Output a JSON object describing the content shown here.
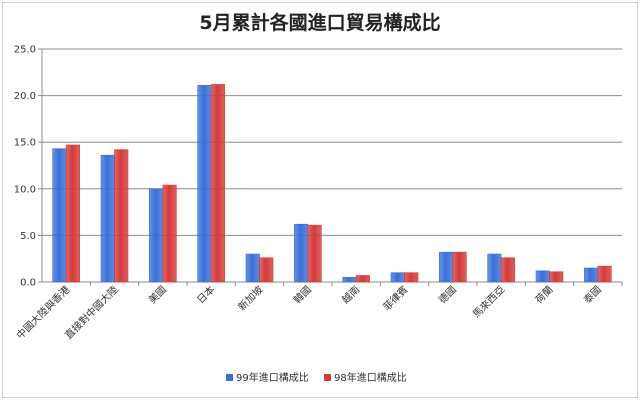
{
  "chart_data": {
    "type": "bar",
    "title": "5月累計各國進口貿易構成比",
    "categories": [
      "中國大陸與香港",
      "直接對中國大陸",
      "美國",
      "日本",
      "新加坡",
      "韓國",
      "越南",
      "菲律賓",
      "德國",
      "馬來西亞",
      "荷蘭",
      "泰國"
    ],
    "series": [
      {
        "name": "99年進口構成比",
        "color": "#3a6fd8",
        "values": [
          14.3,
          13.6,
          10.0,
          21.1,
          3.0,
          6.2,
          0.5,
          1.0,
          3.2,
          3.0,
          1.2,
          1.5
        ]
      },
      {
        "name": "98年進口構成比",
        "color": "#d43a3a",
        "values": [
          14.7,
          14.2,
          10.4,
          21.2,
          2.6,
          6.1,
          0.7,
          1.0,
          3.2,
          2.6,
          1.1,
          1.7
        ]
      }
    ],
    "ylim": [
      0,
      25
    ],
    "yticks": [
      "0.0",
      "5.0",
      "10.0",
      "15.0",
      "20.0",
      "25.0"
    ],
    "grid": true,
    "legend_position": "bottom"
  }
}
